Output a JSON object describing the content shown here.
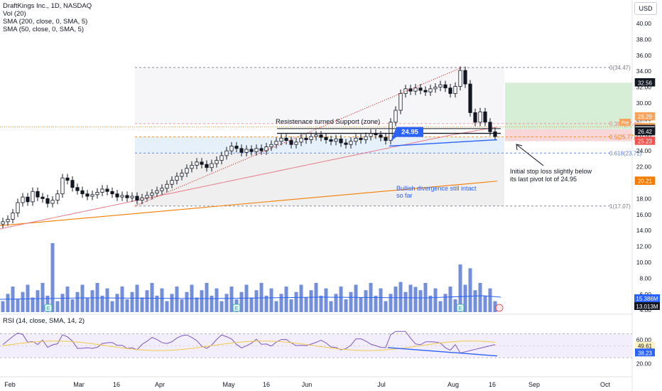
{
  "legend": {
    "title": "DraftKings Inc., 1D, NASDAQ",
    "vol": "Vol (20)",
    "sma200": "SMA (200, close, 0, SMA, 5)",
    "sma50": "SMA (50, close, 0, SMA, 5)"
  },
  "currency": "USD",
  "price_axis": {
    "ticks": [
      "40.00",
      "38.00",
      "36.00",
      "34.00",
      "32.00",
      "30.00",
      "28.00",
      "26.00",
      "24.00",
      "22.00",
      "20.00",
      "18.00",
      "16.00",
      "14.00",
      "12.00",
      "10.00",
      "8.00",
      "6.00",
      "4.00"
    ],
    "tick_values": [
      40,
      38,
      36,
      34,
      32,
      30,
      28,
      26,
      24,
      22,
      20,
      18,
      16,
      14,
      12,
      10,
      8,
      6,
      4
    ]
  },
  "price_tags": [
    {
      "label": "32.56",
      "value": 32.56,
      "bg": "#131722",
      "fg": "#ffffff"
    },
    {
      "label": "28.29",
      "value": 28.29,
      "bg": "#f7a35c",
      "fg": "#ffffff"
    },
    {
      "label": "26.95",
      "value": 26.95,
      "bg": "#f7a35c",
      "fg": "#ffffff"
    },
    {
      "label": "26.70",
      "value": 26.7,
      "bg": "#131722",
      "fg": "#ffffff"
    },
    {
      "label": "26.57",
      "value": 26.57,
      "bg": "#ffffff",
      "fg": "#131722"
    },
    {
      "label": "26.42",
      "value": 26.42,
      "bg": "#131722",
      "fg": "#ffffff"
    },
    {
      "label": "25.23",
      "value": 25.23,
      "bg": "#ef5350",
      "fg": "#ffffff"
    },
    {
      "label": "20.21",
      "value": 20.21,
      "bg": "#f57c00",
      "fg": "#ffffff"
    }
  ],
  "pre_badge": "Pre",
  "vol_tags": [
    {
      "label": "15.386M",
      "bg": "#2962ff"
    },
    {
      "label": "13.013M",
      "bg": "#131722"
    }
  ],
  "rsi": {
    "legend": "RSI (14, close, SMA, 14, 2)",
    "ticks": [
      "60.00",
      "40.00",
      "20.00"
    ],
    "tick_values": [
      60,
      40,
      20
    ],
    "tags": [
      {
        "label": "49.61",
        "value": 49.61,
        "bg": "#fff3c4",
        "fg": "#131722"
      },
      {
        "label": "38.23",
        "value": 38.23,
        "bg": "#2962ff",
        "fg": "#ffffff"
      }
    ]
  },
  "time_axis": [
    "Feb",
    "Mar",
    "16",
    "Apr",
    "May",
    "16",
    "Jun",
    "Jul",
    "Aug",
    "16",
    "Sep",
    "Oct"
  ],
  "fib_levels": [
    {
      "label": "0(34.47)",
      "value": 34.47
    },
    {
      "label": "0.382(27.42)",
      "value": 27.42
    },
    {
      "label": "0.5(25.77)",
      "value": 25.77
    },
    {
      "label": "0.618(23.72)",
      "value": 23.72
    },
    {
      "label": "1(17.07)",
      "value": 17.07
    }
  ],
  "annotations": {
    "resistance": "Resistenace  turned Support (zone)",
    "box_price": "24.95",
    "stop_loss_1": "Initial stop loss slightly below",
    "stop_loss_2": "its last pivot lot of 24.95",
    "bullish_1": "Bullish divergence still intact",
    "bullish_2": "so far"
  },
  "colors": {
    "up": "#ffffff",
    "down": "#131722",
    "sma200": "#f57c00",
    "sma50": "#e57b88",
    "volume": "#5b7bd6",
    "rsi": "#7e57c2",
    "rsi_sma": "#f2c94c",
    "blue": "#2962ff",
    "target_zone": "#d7eed6",
    "stop_zone": "#f9d6d8"
  },
  "chart_data": {
    "type": "candlestick",
    "note_values": "approximate daily closes read from chart",
    "closes": [
      15.1,
      15.4,
      16.2,
      17.5,
      18.2,
      17.6,
      18.9,
      18.2,
      18.0,
      17.4,
      17.8,
      18.6,
      20.6,
      20.3,
      19.4,
      19.0,
      18.6,
      18.3,
      18.5,
      18.8,
      19.2,
      18.9,
      18.6,
      18.2,
      18.4,
      18.1,
      18.3,
      17.8,
      18.1,
      18.4,
      18.7,
      19.0,
      19.3,
      19.8,
      20.3,
      20.8,
      21.2,
      21.8,
      22.2,
      22.6,
      22.3,
      21.9,
      22.4,
      22.8,
      23.4,
      24.0,
      24.6,
      24.3,
      23.8,
      24.2,
      23.9,
      24.3,
      24.0,
      24.5,
      24.8,
      25.2,
      25.6,
      25.3,
      24.8,
      25.1,
      25.6,
      25.4,
      25.8,
      26.0,
      25.7,
      25.4,
      25.2,
      25.5,
      25.0,
      24.8,
      25.2,
      25.6,
      25.4,
      25.8,
      26.2,
      26.0,
      25.7,
      25.3,
      27.6,
      29.1,
      31.2,
      31.8,
      31.5,
      31.9,
      31.6,
      31.4,
      31.8,
      32.0,
      32.3,
      31.9,
      31.2,
      32.1,
      34.1,
      32.4,
      28.8,
      27.6,
      28.9,
      27.6,
      26.4,
      25.8
    ]
  }
}
